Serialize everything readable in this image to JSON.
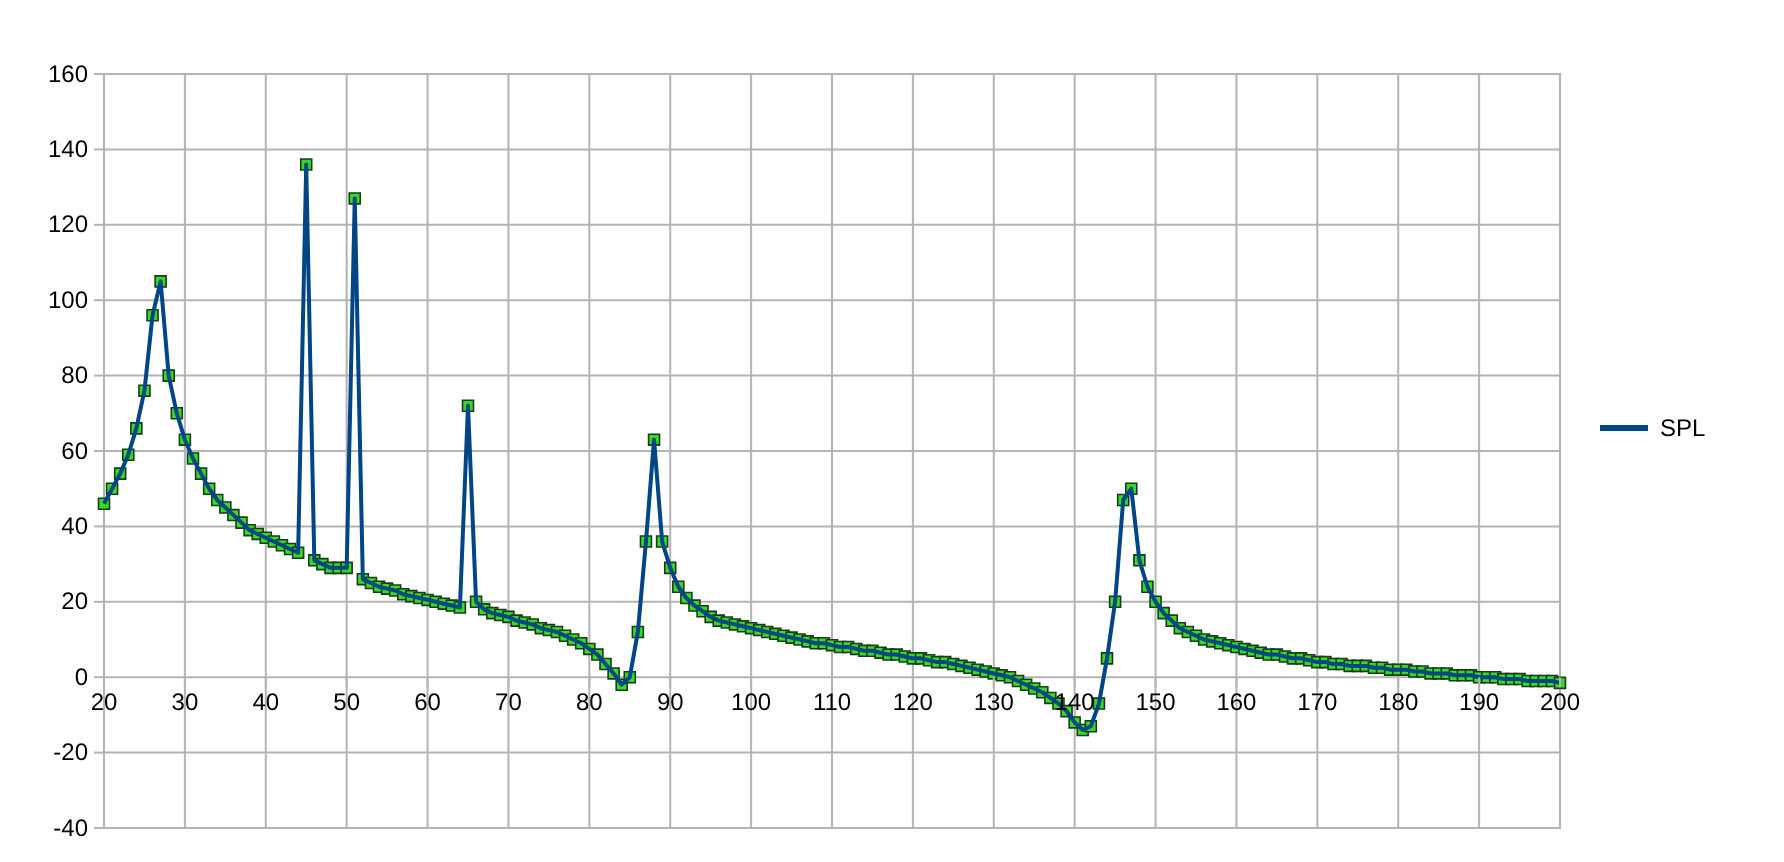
{
  "chart_data": {
    "type": "line",
    "x": [
      20,
      21,
      22,
      23,
      24,
      25,
      26,
      27,
      28,
      29,
      30,
      31,
      32,
      33,
      34,
      35,
      36,
      37,
      38,
      39,
      40,
      41,
      42,
      43,
      44,
      45,
      46,
      47,
      48,
      49,
      50,
      51,
      52,
      53,
      54,
      55,
      56,
      57,
      58,
      59,
      60,
      61,
      62,
      63,
      64,
      65,
      66,
      67,
      68,
      69,
      70,
      71,
      72,
      73,
      74,
      75,
      76,
      77,
      78,
      79,
      80,
      81,
      82,
      83,
      84,
      85,
      86,
      87,
      88,
      89,
      90,
      91,
      92,
      93,
      94,
      95,
      96,
      97,
      98,
      99,
      100,
      101,
      102,
      103,
      104,
      105,
      106,
      107,
      108,
      109,
      110,
      111,
      112,
      113,
      114,
      115,
      116,
      117,
      118,
      119,
      120,
      121,
      122,
      123,
      124,
      125,
      126,
      127,
      128,
      129,
      130,
      131,
      132,
      133,
      134,
      135,
      136,
      137,
      138,
      139,
      140,
      141,
      142,
      143,
      144,
      145,
      146,
      147,
      148,
      149,
      150,
      151,
      152,
      153,
      154,
      155,
      156,
      157,
      158,
      159,
      160,
      161,
      162,
      163,
      164,
      165,
      166,
      167,
      168,
      169,
      170,
      171,
      172,
      173,
      174,
      175,
      176,
      177,
      178,
      179,
      180,
      181,
      182,
      183,
      184,
      185,
      186,
      187,
      188,
      189,
      190,
      191,
      192,
      193,
      194,
      195,
      196,
      197,
      198,
      199,
      200
    ],
    "series": [
      {
        "name": "SPL",
        "color": "#004586",
        "values": [
          46,
          50,
          54,
          59,
          66,
          76,
          96,
          105,
          80,
          70,
          63,
          58,
          54,
          50,
          47,
          45,
          43,
          41,
          39,
          38,
          37,
          36,
          35,
          34,
          33,
          136,
          31,
          30,
          29,
          29,
          29,
          127,
          26,
          25,
          24,
          23.5,
          23,
          22,
          21.5,
          21,
          20.5,
          20,
          19.5,
          19,
          18.5,
          72,
          20,
          18,
          17,
          16.5,
          16,
          15,
          14.5,
          14,
          13,
          12.5,
          12,
          11,
          10,
          9,
          7.5,
          6,
          3.5,
          1,
          -2,
          0,
          12,
          36,
          63,
          36,
          29,
          24,
          21,
          19,
          17.5,
          16,
          15,
          14.5,
          14,
          13.5,
          13,
          12.5,
          12,
          11.5,
          11,
          10.5,
          10,
          9.5,
          9,
          9,
          8.5,
          8,
          8,
          7.5,
          7,
          7,
          6.5,
          6,
          6,
          5.5,
          5,
          5,
          4.5,
          4,
          4,
          3.5,
          3,
          2.5,
          2,
          1.5,
          1,
          0.5,
          0,
          -1,
          -2,
          -3,
          -4,
          -5.5,
          -7,
          -9,
          -12,
          -14,
          -13,
          -7,
          5,
          20,
          47,
          50,
          31,
          24,
          20,
          17,
          15,
          13,
          12,
          11,
          10,
          9.5,
          9,
          8.5,
          8,
          7.5,
          7,
          6.5,
          6,
          6,
          5.5,
          5,
          5,
          4.5,
          4,
          4,
          3.5,
          3.5,
          3,
          3,
          3,
          2.5,
          2.5,
          2,
          2,
          2,
          1.5,
          1.5,
          1,
          1,
          1,
          0.5,
          0.5,
          0.5,
          0,
          0,
          0,
          -0.5,
          -0.5,
          -0.5,
          -1,
          -1,
          -1,
          -1,
          -1.5
        ]
      }
    ],
    "xlim": [
      20,
      200
    ],
    "xticks": [
      20,
      30,
      40,
      50,
      60,
      70,
      80,
      90,
      100,
      110,
      120,
      130,
      140,
      150,
      160,
      170,
      180,
      190,
      200
    ],
    "ylim": [
      -40,
      160
    ],
    "yticks": [
      -40,
      -20,
      0,
      20,
      40,
      60,
      80,
      100,
      120,
      140,
      160
    ],
    "grid": true,
    "legend": "right",
    "marker": "square",
    "line_style": "solid"
  }
}
